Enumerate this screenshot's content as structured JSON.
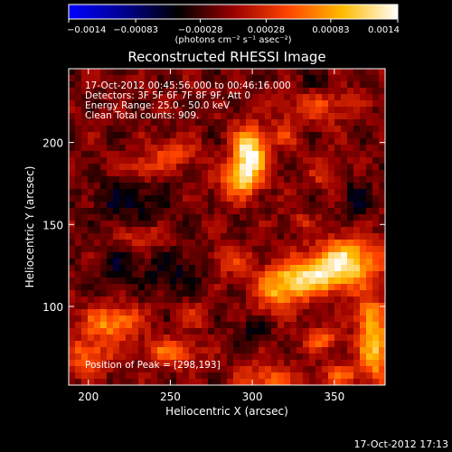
{
  "chart_data": {
    "type": "heatmap",
    "title": "Reconstructed RHESSI Image",
    "xlabel": "Heliocentric X (arcsec)",
    "ylabel": "Heliocentric Y (arcsec)",
    "xlim": [
      188,
      381
    ],
    "ylim": [
      52,
      245
    ],
    "x_ticks": [
      200,
      250,
      300,
      350
    ],
    "y_ticks": [
      100,
      150,
      200
    ],
    "colorbar": {
      "range": [
        -0.0014,
        0.0014
      ],
      "tick_values": [
        -0.0014,
        -0.00083,
        -0.00028,
        0.00028,
        0.00083,
        0.0014
      ],
      "tick_labels": [
        "−0.0014",
        "−0.00083",
        "−0.00028",
        "0.00028",
        "0.00083",
        "0.0014"
      ],
      "unit_label": "(photons cm⁻² s⁻¹ asec⁻²)",
      "colormap": [
        "#0000ff",
        "#000090",
        "#000000",
        "#990000",
        "#ff4400",
        "#ffbb00",
        "#ffffff"
      ]
    },
    "annotations": [
      "17-Oct-2012 00:45:56.000 to 00:46:16.000",
      "Detectors: 3F 5F 6F 7F 8F 9F, Att 0",
      "Energy Range: 25.0 - 50.0 keV",
      "Clean    Total counts: 909."
    ],
    "peak_label": "Position of Peak = [298,193]",
    "peak": {
      "x": 298,
      "y": 193,
      "value": 0.0014
    },
    "sources": [
      {
        "x": 298,
        "y": 193,
        "sx": 7,
        "sy": 11,
        "amp": 0.00155
      },
      {
        "x": 292,
        "y": 176,
        "sx": 9,
        "sy": 7,
        "amp": 0.00085
      },
      {
        "x": 252,
        "y": 193,
        "sx": 10,
        "sy": 6,
        "amp": 0.00055
      },
      {
        "x": 232,
        "y": 184,
        "sx": 9,
        "sy": 6,
        "amp": 0.00045
      },
      {
        "x": 358,
        "y": 128,
        "sx": 14,
        "sy": 10,
        "amp": 0.0012
      },
      {
        "x": 335,
        "y": 118,
        "sx": 16,
        "sy": 8,
        "amp": 0.00105
      },
      {
        "x": 316,
        "y": 108,
        "sx": 10,
        "sy": 9,
        "amp": 0.0008
      },
      {
        "x": 286,
        "y": 128,
        "sx": 8,
        "sy": 6,
        "amp": 0.0005
      },
      {
        "x": 372,
        "y": 95,
        "sx": 7,
        "sy": 9,
        "amp": 0.00075
      },
      {
        "x": 375,
        "y": 72,
        "sx": 7,
        "sy": 12,
        "amp": 0.0011
      },
      {
        "x": 342,
        "y": 80,
        "sx": 8,
        "sy": 6,
        "amp": 0.0006
      },
      {
        "x": 310,
        "y": 56,
        "sx": 12,
        "sy": 6,
        "amp": 0.0007
      },
      {
        "x": 355,
        "y": 58,
        "sx": 8,
        "sy": 5,
        "amp": 0.0006
      },
      {
        "x": 215,
        "y": 90,
        "sx": 12,
        "sy": 7,
        "amp": 0.0009
      },
      {
        "x": 200,
        "y": 70,
        "sx": 10,
        "sy": 8,
        "amp": 0.0007
      },
      {
        "x": 250,
        "y": 72,
        "sx": 12,
        "sy": 6,
        "amp": 0.0007
      },
      {
        "x": 265,
        "y": 95,
        "sx": 6,
        "sy": 5,
        "amp": 0.0004
      },
      {
        "x": 232,
        "y": 143,
        "sx": 9,
        "sy": 4,
        "amp": 0.00045
      },
      {
        "x": 340,
        "y": 222,
        "sx": 16,
        "sy": 7,
        "amp": 0.0005
      },
      {
        "x": 320,
        "y": 205,
        "sx": 6,
        "sy": 6,
        "amp": 0.0004
      },
      {
        "x": 345,
        "y": 180,
        "sx": 7,
        "sy": 6,
        "amp": 0.0004
      },
      {
        "x": 328,
        "y": 152,
        "sx": 5,
        "sy": 4,
        "amp": 0.00035
      },
      {
        "x": 225,
        "y": 165,
        "sx": 16,
        "sy": 10,
        "amp": -0.0004
      },
      {
        "x": 250,
        "y": 120,
        "sx": 14,
        "sy": 8,
        "amp": -0.00035
      },
      {
        "x": 218,
        "y": 125,
        "sx": 8,
        "sy": 7,
        "amp": -0.0003
      },
      {
        "x": 362,
        "y": 165,
        "sx": 8,
        "sy": 10,
        "amp": -0.0003
      },
      {
        "x": 340,
        "y": 236,
        "sx": 6,
        "sy": 4,
        "amp": -0.0003
      },
      {
        "x": 300,
        "y": 85,
        "sx": 8,
        "sy": 6,
        "amp": -0.0003
      }
    ]
  },
  "footer_timestamp": "17-Oct-2012 17:13"
}
